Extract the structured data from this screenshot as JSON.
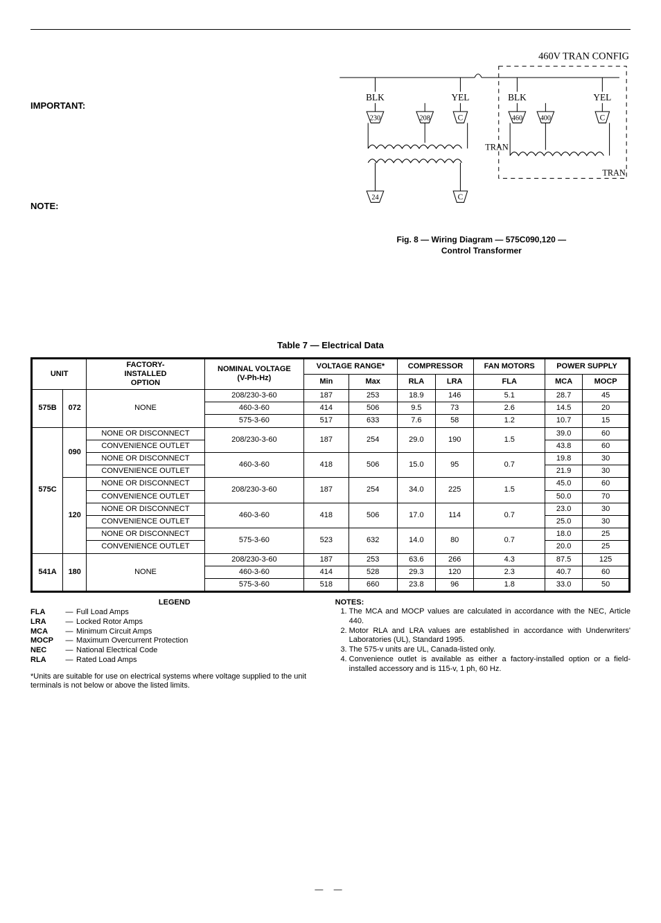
{
  "labels": {
    "important": "IMPORTANT:",
    "note": "NOTE:",
    "fig_caption_l1": "Fig. 8 — Wiring Diagram — 575C090,120 —",
    "fig_caption_l2": "Control Transformer",
    "table_title": "Table 7 — Electrical Data",
    "legend_title": "LEGEND",
    "notes_title": "NOTES:",
    "footnote": "*Units are suitable for use on electrical systems where voltage supplied to the unit terminals is not below or above the listed limits.",
    "page_dash": "—   —"
  },
  "diagram": {
    "title": "460V TRAN CONFIG",
    "blk": "BLK",
    "yel": "YEL",
    "c": "C",
    "tran": "TRAN",
    "n230": "230",
    "n208": "208",
    "n460": "460",
    "n400": "400",
    "n24": "24"
  },
  "table": {
    "headers": {
      "unit": "UNIT",
      "factory": "FACTORY-\nINSTALLED\nOPTION",
      "nominal": "NOMINAL VOLTAGE\n(V-Ph-Hz)",
      "vrange": "VOLTAGE RANGE*",
      "min": "Min",
      "max": "Max",
      "compressor": "COMPRESSOR",
      "rla": "RLA",
      "lra": "LRA",
      "fan": "FAN MOTORS",
      "fla": "FLA",
      "power": "POWER SUPPLY",
      "mca": "MCA",
      "mocp": "MOCP"
    },
    "opt_none": "NONE",
    "opt_disc": "NONE OR DISCONNECT",
    "opt_conv": "CONVENIENCE OUTLET",
    "u575b": "575B",
    "s072": "072",
    "u575c": "575C",
    "s090": "090",
    "s120": "120",
    "u541a": "541A",
    "s180": "180",
    "r": [
      [
        "208/230-3-60",
        "187",
        "253",
        "18.9",
        "146",
        "5.1",
        "28.7",
        "45"
      ],
      [
        "460-3-60",
        "414",
        "506",
        "9.5",
        "73",
        "2.6",
        "14.5",
        "20"
      ],
      [
        "575-3-60",
        "517",
        "633",
        "7.6",
        "58",
        "1.2",
        "10.7",
        "15"
      ],
      [
        "208/230-3-60",
        "187",
        "254",
        "29.0",
        "190",
        "1.5",
        "39.0",
        "60"
      ],
      [
        "",
        "",
        "",
        "",
        "",
        "",
        "43.8",
        "60"
      ],
      [
        "460-3-60",
        "418",
        "506",
        "15.0",
        "95",
        "0.7",
        "19.8",
        "30"
      ],
      [
        "",
        "",
        "",
        "",
        "",
        "",
        "21.9",
        "30"
      ],
      [
        "208/230-3-60",
        "187",
        "254",
        "34.0",
        "225",
        "1.5",
        "45.0",
        "60"
      ],
      [
        "",
        "",
        "",
        "",
        "",
        "",
        "50.0",
        "70"
      ],
      [
        "460-3-60",
        "418",
        "506",
        "17.0",
        "114",
        "0.7",
        "23.0",
        "30"
      ],
      [
        "",
        "",
        "",
        "",
        "",
        "",
        "25.0",
        "30"
      ],
      [
        "575-3-60",
        "523",
        "632",
        "14.0",
        "80",
        "0.7",
        "18.0",
        "25"
      ],
      [
        "",
        "",
        "",
        "",
        "",
        "",
        "20.0",
        "25"
      ],
      [
        "208/230-3-60",
        "187",
        "253",
        "63.6",
        "266",
        "4.3",
        "87.5",
        "125"
      ],
      [
        "460-3-60",
        "414",
        "528",
        "29.3",
        "120",
        "2.3",
        "40.7",
        "60"
      ],
      [
        "575-3-60",
        "518",
        "660",
        "23.8",
        "96",
        "1.8",
        "33.0",
        "50"
      ]
    ]
  },
  "legend": [
    [
      "FLA",
      "Full Load Amps"
    ],
    [
      "LRA",
      "Locked Rotor Amps"
    ],
    [
      "MCA",
      "Minimum Circuit Amps"
    ],
    [
      "MOCP",
      "Maximum Overcurrent Protection"
    ],
    [
      "NEC",
      "National Electrical Code"
    ],
    [
      "RLA",
      "Rated Load Amps"
    ]
  ],
  "notes": [
    "The MCA and MOCP values are calculated in accordance with the NEC, Article 440.",
    "Motor RLA and LRA values are established in accordance with Underwriters' Laboratories (UL), Standard 1995.",
    "The 575-v units are UL, Canada-listed only.",
    "Convenience outlet is available as either a factory-installed option or a field-installed accessory and is 115-v, 1 ph, 60 Hz."
  ]
}
